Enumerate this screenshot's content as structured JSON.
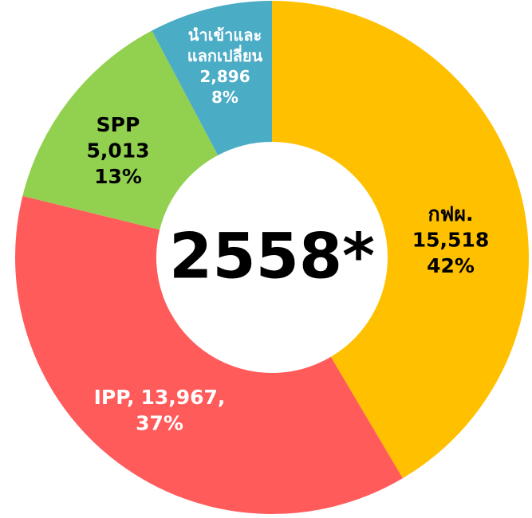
{
  "chart_data": {
    "type": "donut",
    "center_label": "2558*",
    "categories": [
      "กฟผ.",
      "IPP",
      "SPP",
      [
        "นำเข้าและ",
        "แลกเปลี่ยน"
      ]
    ],
    "values": [
      15518,
      13967,
      5013,
      2896
    ],
    "value_labels": [
      "15,518",
      "13,967",
      "5,013",
      "2,896"
    ],
    "percents": [
      42,
      37,
      13,
      8
    ],
    "percent_labels": [
      "42%",
      "37%",
      "13%",
      "8%"
    ],
    "label_separator": ",",
    "colors": [
      "#FFC000",
      "#FF5B5B",
      "#92D050",
      "#4BACC6"
    ],
    "label_colors": [
      "#000000",
      "#FFFFFF",
      "#000000",
      "#FFFFFF"
    ]
  }
}
